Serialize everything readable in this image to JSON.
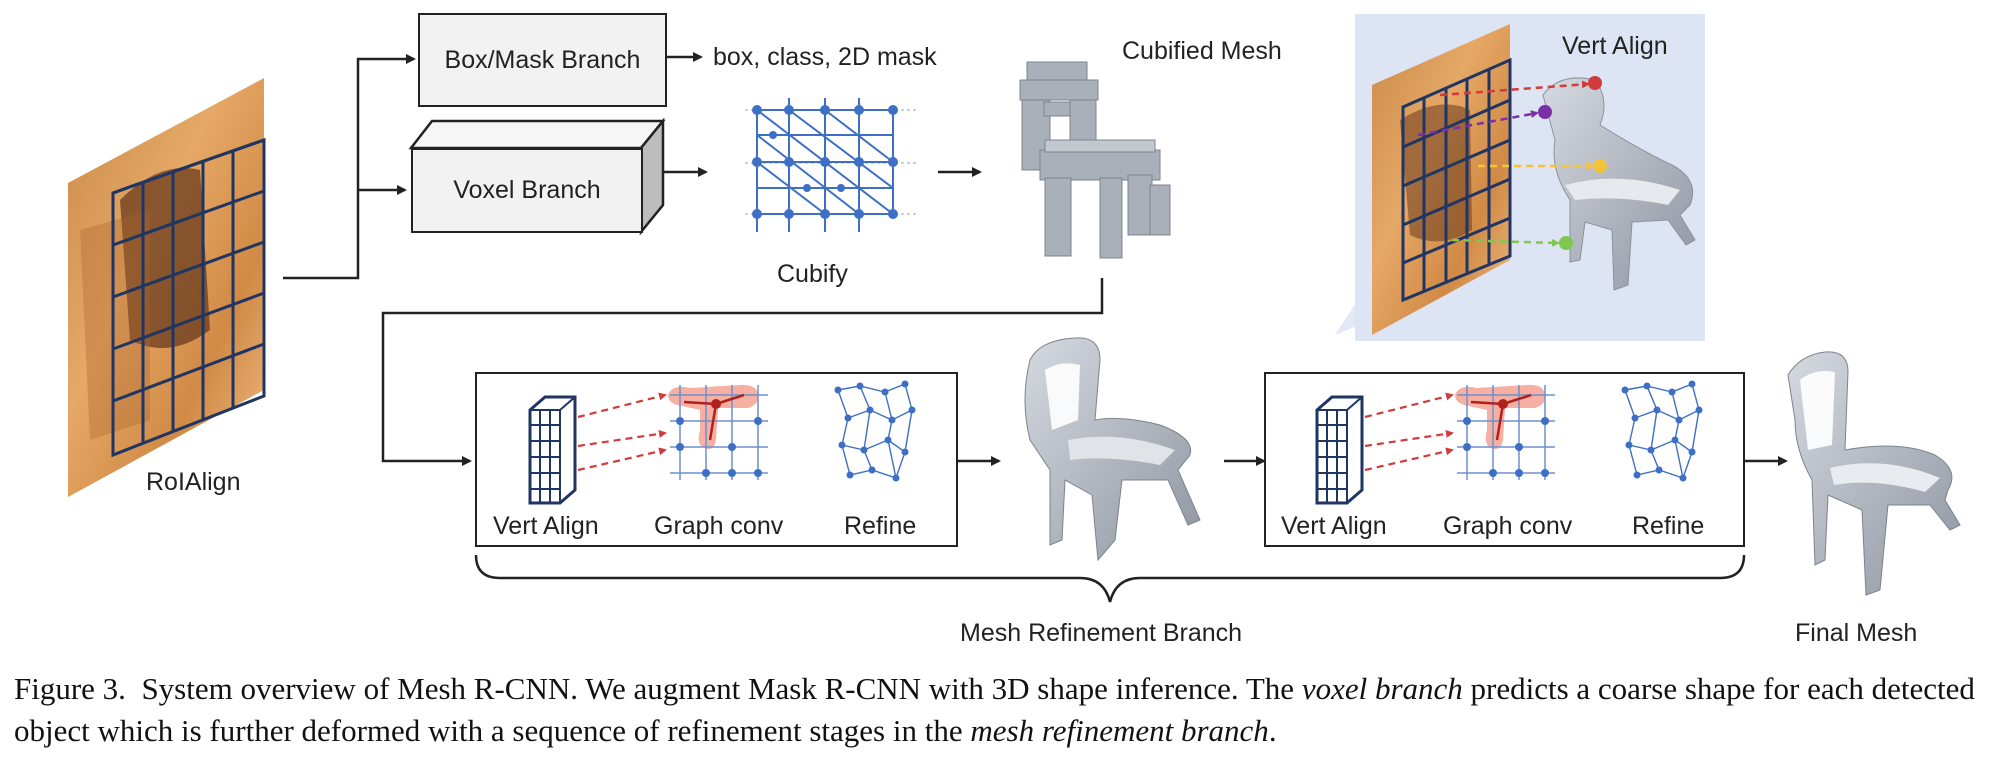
{
  "labels": {
    "roialign": "RoIAlign",
    "box_mask_branch": "Box/Mask Branch",
    "box_mask_outputs": "box, class, 2D mask",
    "voxel_branch": "Voxel Branch",
    "cubify": "Cubify",
    "cubified_mesh": "Cubified Mesh",
    "vert_align_inset": "Vert Align",
    "stage1": {
      "vert_align": "Vert Align",
      "graph_conv": "Graph conv",
      "refine": "Refine"
    },
    "stage2": {
      "vert_align": "Vert Align",
      "graph_conv": "Graph conv",
      "refine": "Refine"
    },
    "mesh_refinement_branch": "Mesh Refinement Branch",
    "final_mesh": "Final Mesh"
  },
  "caption": {
    "prefix": "Figure 3.",
    "part1": "System overview of Mesh R-CNN. We augment Mask R-CNN with 3D shape inference.  The ",
    "italic1": "voxel branch",
    "part2": " predicts a coarse shape for each detected object which is further deformed with a sequence of refinement stages in the ",
    "italic2": "mesh refinement branch",
    "part3": "."
  },
  "colors": {
    "line": "#222222",
    "node_blue": "#3d6fc4",
    "grid_navy": "#1f3563",
    "inset_bg": "#dde4f4",
    "wood": "#d9914d",
    "mesh_gray": "#b8bdc6",
    "highlight": "#f08a7c",
    "arrow_red": "#d23b3b",
    "arrow_purple": "#7a2fa6",
    "arrow_yellow": "#f3c43a",
    "arrow_green": "#7ec850"
  },
  "icons": [
    "voxel-chair-icon",
    "mesh-chair-icon",
    "graph-grid-icon",
    "feature-grid-icon",
    "photo-chair-icon"
  ]
}
